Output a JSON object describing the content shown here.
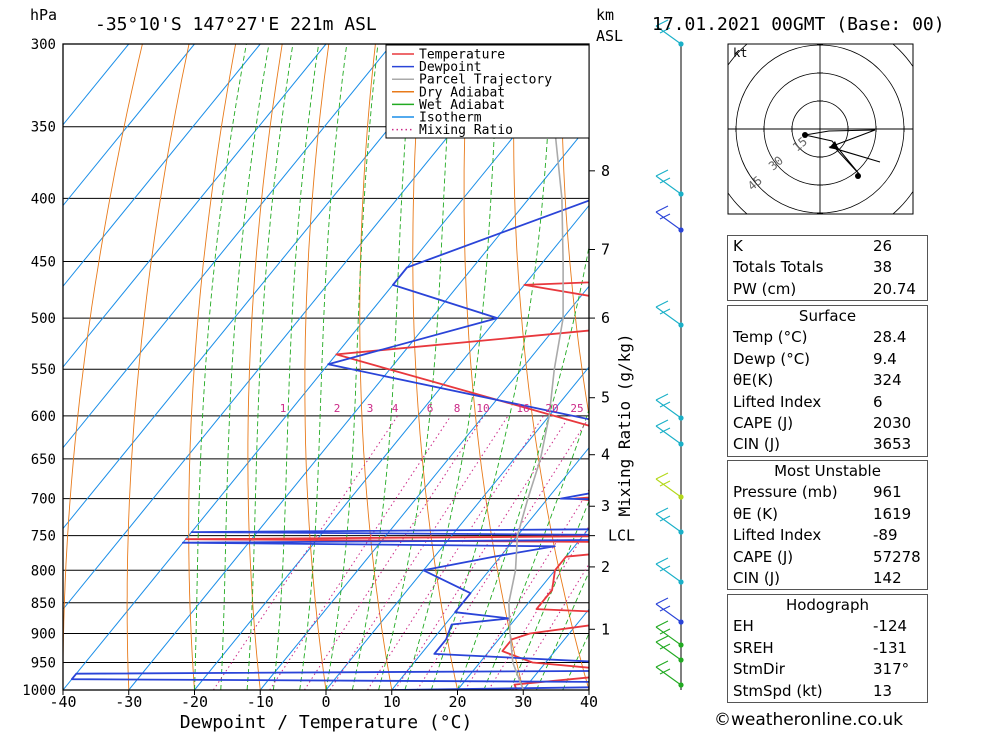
{
  "header": {
    "pressure_unit": "hPa",
    "location": "-35°10'S 147°27'E 221m ASL",
    "km_label": "km",
    "asl_label": "ASL",
    "datetime": "17.01.2021 00GMT (Base: 00)"
  },
  "chart_data": {
    "type": "line",
    "chart_kind": "skew-T log-P diagram",
    "xlabel": "Dewpoint / Temperature (°C)",
    "ylabel": "hPa",
    "mixing_ratio_label": "Mixing Ratio (g/kg)",
    "x_ticks": [
      "-40",
      "-30",
      "-20",
      "-10",
      "0",
      "10",
      "20",
      "30",
      "40"
    ],
    "xlim": [
      -40,
      40
    ],
    "ylim": [
      1000,
      300
    ],
    "y_ticks": [
      300,
      350,
      400,
      450,
      500,
      550,
      600,
      650,
      700,
      750,
      800,
      850,
      900,
      950,
      1000
    ],
    "km_ticks": [
      {
        "label": "1",
        "p": 893
      },
      {
        "label": "2",
        "p": 795
      },
      {
        "label": "3",
        "p": 710
      },
      {
        "label": "4",
        "p": 645
      },
      {
        "label": "5",
        "p": 580
      },
      {
        "label": "6",
        "p": 500
      },
      {
        "label": "7",
        "p": 440
      },
      {
        "label": "8",
        "p": 380
      }
    ],
    "lcl": {
      "label": "LCL",
      "p": 750
    },
    "mixing_ratio_ticks": [
      "1",
      "2",
      "3",
      "4",
      "6",
      "8",
      "10",
      "16",
      "20",
      "25"
    ],
    "series": [
      {
        "name": "Temperature",
        "color": "#e8383d",
        "points": [
          [
            1000,
            29
          ],
          [
            990,
            28
          ],
          [
            975,
            40
          ],
          [
            970,
            40
          ],
          [
            960,
            38
          ],
          [
            950,
            28
          ],
          [
            940,
            25
          ],
          [
            930,
            22
          ],
          [
            910,
            22
          ],
          [
            900,
            24
          ],
          [
            880,
            36
          ],
          [
            868,
            40
          ],
          [
            860,
            22
          ],
          [
            830,
            22
          ],
          [
            800,
            20
          ],
          [
            780,
            20
          ],
          [
            760,
            40
          ],
          [
            755,
            -40
          ],
          [
            750,
            38
          ],
          [
            745,
            40
          ],
          [
            720,
            40
          ],
          [
            700,
            14
          ],
          [
            690,
            30
          ],
          [
            670,
            40
          ],
          [
            535,
            -40
          ],
          [
            500,
            14
          ],
          [
            470,
            -20
          ],
          [
            465,
            2
          ],
          [
            420,
            6
          ],
          [
            380,
            8
          ],
          [
            370,
            20
          ],
          [
            362,
            0
          ],
          [
            300,
            0
          ]
        ]
      },
      {
        "name": "Dewpoint",
        "color": "#2a44d8",
        "points": [
          [
            1000,
            10
          ],
          [
            995,
            40
          ],
          [
            985,
            40
          ],
          [
            980,
            -40
          ],
          [
            970,
            -40
          ],
          [
            965,
            40
          ],
          [
            950,
            40
          ],
          [
            935,
            12
          ],
          [
            910,
            12
          ],
          [
            885,
            11
          ],
          [
            875,
            19
          ],
          [
            865,
            10
          ],
          [
            840,
            10
          ],
          [
            835,
            10
          ],
          [
            800,
            0
          ],
          [
            780,
            9
          ],
          [
            765,
            17
          ],
          [
            760,
            -40
          ],
          [
            755,
            40
          ],
          [
            750,
            40
          ],
          [
            745,
            -40
          ],
          [
            740,
            40
          ],
          [
            705,
            40
          ],
          [
            700,
            12
          ],
          [
            650,
            40
          ],
          [
            545,
            -40
          ],
          [
            500,
            -20
          ],
          [
            470,
            -40
          ],
          [
            455,
            -40
          ],
          [
            400,
            -20
          ],
          [
            375,
            12
          ],
          [
            365,
            10
          ],
          [
            300,
            -40
          ]
        ]
      },
      {
        "name": "Parcel Trajectory",
        "color": "#aaaaaa",
        "points": [
          [
            1000,
            30
          ],
          [
            950,
            25
          ],
          [
            900,
            21
          ],
          [
            850,
            17
          ],
          [
            800,
            14
          ],
          [
            750,
            10
          ],
          [
            700,
            7
          ],
          [
            650,
            4
          ],
          [
            600,
            0
          ],
          [
            550,
            -5
          ],
          [
            500,
            -10
          ],
          [
            450,
            -17
          ],
          [
            400,
            -25
          ],
          [
            350,
            -35
          ],
          [
            300,
            -46
          ]
        ]
      }
    ],
    "legend": {
      "placement": "top-center",
      "entries": [
        {
          "label": "Temperature",
          "color": "#e8383d",
          "style": "solid"
        },
        {
          "label": "Dewpoint",
          "color": "#2a44d8",
          "style": "solid"
        },
        {
          "label": "Parcel Trajectory",
          "color": "#aaaaaa",
          "style": "solid"
        },
        {
          "label": "Dry Adiabat",
          "color": "#e87a1a",
          "style": "solid"
        },
        {
          "label": "Wet Adiabat",
          "color": "#22aa22",
          "style": "solid"
        },
        {
          "label": "Isotherm",
          "color": "#1a8ee8",
          "style": "solid"
        },
        {
          "label": "Mixing Ratio",
          "color": "#cc2a88",
          "style": "dotted"
        }
      ]
    },
    "hodograph": {
      "unit_label": "kt",
      "ring_labels": [
        "15",
        "30",
        "45"
      ]
    }
  },
  "indices": [
    {
      "key": "K",
      "value": "26"
    },
    {
      "key": "Totals Totals",
      "value": "38"
    },
    {
      "key": "PW (cm)",
      "value": "20.74"
    }
  ],
  "surface": {
    "title": "Surface",
    "rows": [
      {
        "key": "Temp (°C)",
        "value": "28.4"
      },
      {
        "key": "Dewp (°C)",
        "value": "9.4"
      },
      {
        "key": "θE(K)",
        "value": "324"
      },
      {
        "key": "Lifted Index",
        "value": "6"
      },
      {
        "key": "CAPE (J)",
        "value": "2030"
      },
      {
        "key": "CIN (J)",
        "value": "3653"
      }
    ]
  },
  "most_unstable": {
    "title": "Most Unstable",
    "rows": [
      {
        "key": "Pressure (mb)",
        "value": "961"
      },
      {
        "key": "θE (K)",
        "value": "1619"
      },
      {
        "key": "Lifted Index",
        "value": "-89"
      },
      {
        "key": "CAPE (J)",
        "value": "57278"
      },
      {
        "key": "CIN (J)",
        "value": "142"
      }
    ]
  },
  "hodograph_table": {
    "title": "Hodograph",
    "rows": [
      {
        "key": "EH",
        "value": "-124"
      },
      {
        "key": "SREH",
        "value": "-131"
      },
      {
        "key": "StmDir",
        "value": "317°"
      },
      {
        "key": "StmSpd (kt)",
        "value": "13"
      }
    ]
  },
  "credit": "©weatheronline.co.uk"
}
